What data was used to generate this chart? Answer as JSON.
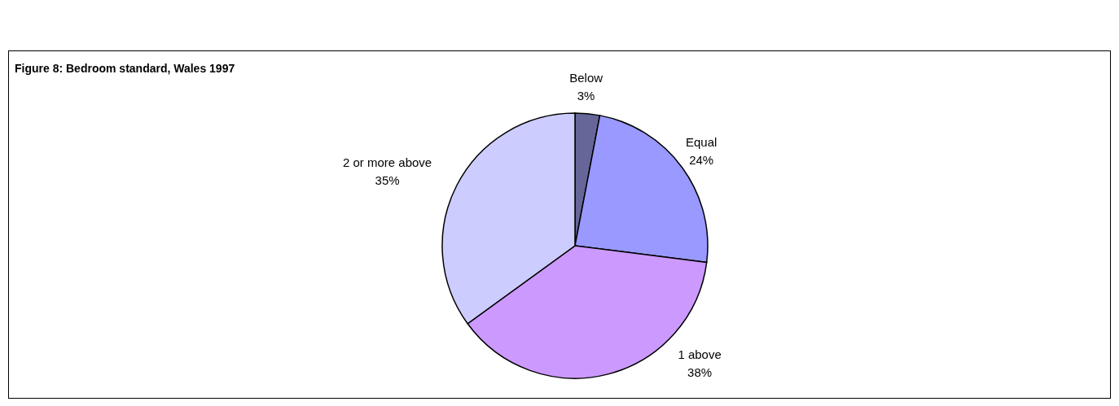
{
  "chart_data": {
    "type": "pie",
    "title": "Figure 8: Bedroom standard, Wales 1997",
    "categories": [
      "Below",
      "Equal",
      "1 above",
      "2 or more above"
    ],
    "values": [
      3,
      24,
      38,
      35
    ],
    "colors": [
      "#666699",
      "#9999ff",
      "#cc99ff",
      "#ccccff"
    ],
    "value_labels": [
      "3%",
      "24%",
      "38%",
      "35%"
    ]
  }
}
